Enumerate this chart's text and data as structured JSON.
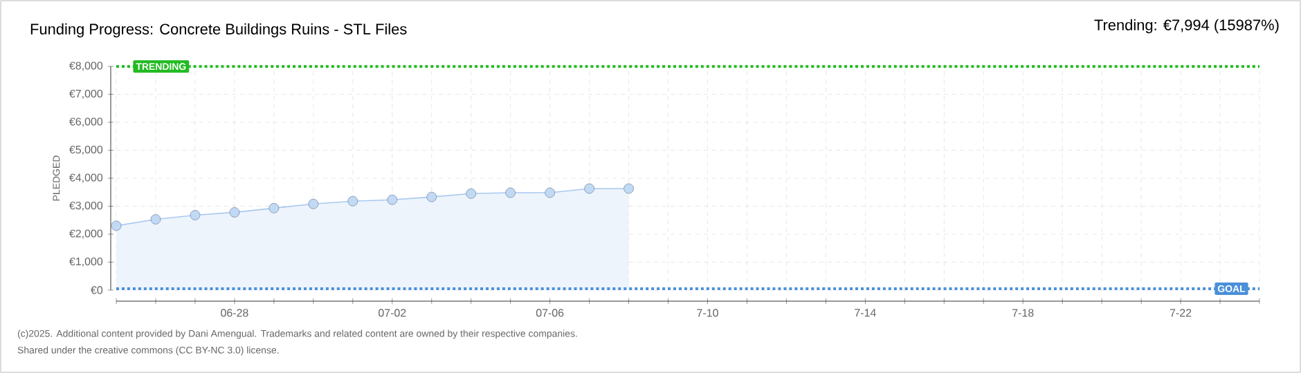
{
  "chart_data": {
    "type": "area",
    "title": "Funding Progress: Concrete Buildings Ruins - STL Files",
    "subtitle": "Trending: €7,994 (15987%)",
    "ylabel": "PLEDGED",
    "annotations": [
      "(c)2025. Additional content provided by Dani Amengual. Trademarks and related content are owned by their respective companies.",
      "Shared under the creative commons (CC BY-NC 3.0) license."
    ],
    "categories": [
      null,
      null,
      null,
      "06-28",
      null,
      null,
      null,
      "07-02",
      null,
      null,
      null,
      "07-06",
      null,
      null,
      null,
      "7-10",
      null,
      null,
      null,
      "7-14",
      null,
      null,
      null,
      "7-18",
      null,
      null,
      null,
      "7-22",
      null,
      null
    ],
    "series": [
      {
        "color": "#a8c8f0",
        "values": [
          2300,
          2530,
          2680,
          2780,
          2930,
          3080,
          3180,
          3230,
          3330,
          3450,
          3480,
          3480,
          3630,
          3630,
          null,
          null,
          null,
          null,
          null,
          null,
          null,
          null,
          null,
          null,
          null,
          null,
          null,
          null,
          null,
          null
        ]
      }
    ],
    "ylim": [
      0,
      8000
    ],
    "yticks": [
      {
        "value": 0,
        "label": "€0"
      },
      {
        "value": 1000,
        "label": "€1,000"
      },
      {
        "value": 2000,
        "label": "€2,000"
      },
      {
        "value": 3000,
        "label": "€3,000"
      },
      {
        "value": 4000,
        "label": "€4,000"
      },
      {
        "value": 5000,
        "label": "€5,000"
      },
      {
        "value": 6000,
        "label": "€6,000"
      },
      {
        "value": 7000,
        "label": "€7,000"
      },
      {
        "value": 8000,
        "label": "€8,000"
      }
    ],
    "ref_lines": [
      {
        "axis": "y",
        "value": 7994,
        "label": "TRENDING",
        "color": "#22bb22",
        "line_style": "dotted"
      },
      {
        "axis": "y",
        "value": 50,
        "label": "GOAL",
        "color": "#4a90d9",
        "line_style": "dotted"
      }
    ],
    "grid": true,
    "marker": "circle",
    "line_style": "solid"
  }
}
